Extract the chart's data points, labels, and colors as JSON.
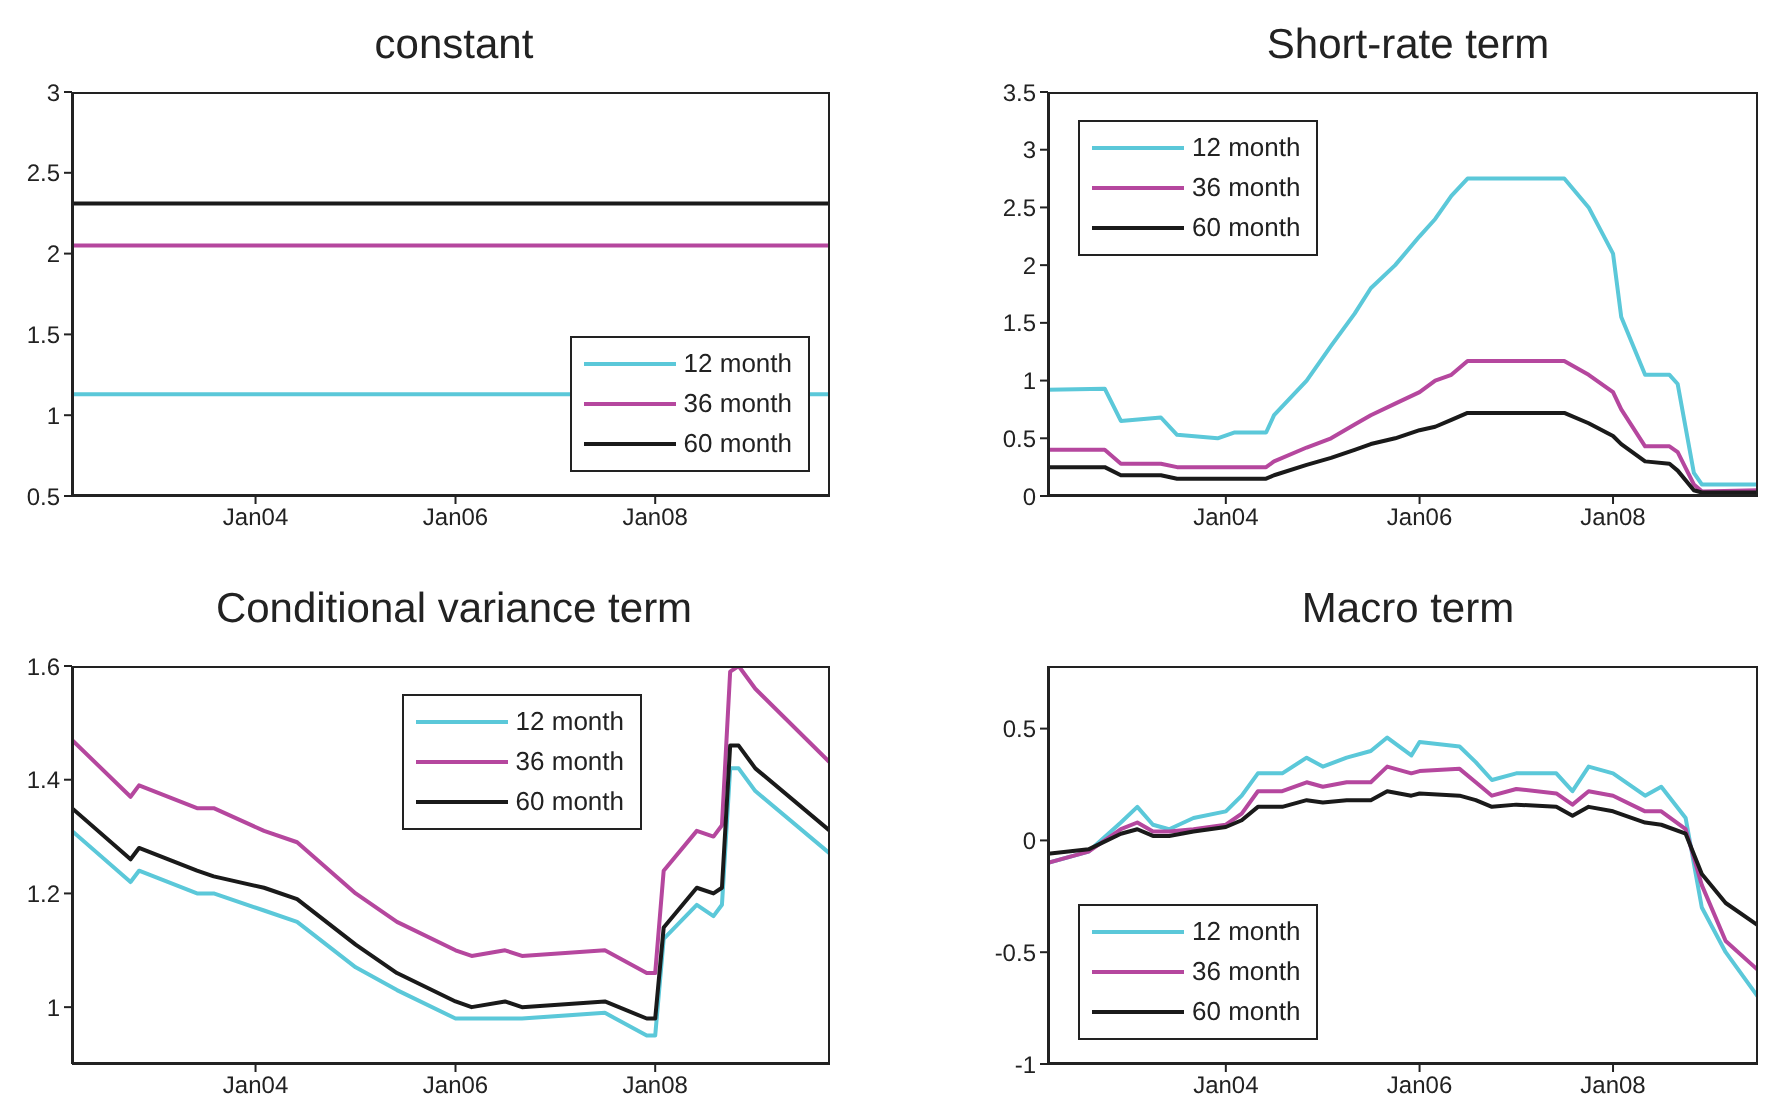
{
  "chart_data": [
    {
      "type": "line",
      "title": "constant",
      "legend": "bottom right",
      "x": [
        "2002-03",
        "2009-10"
      ],
      "xlim": [
        "2002-03",
        "2009-10"
      ],
      "xticks": [
        {
          "value": "2004-01",
          "label": "Jan04"
        },
        {
          "value": "2006-01",
          "label": "Jan06"
        },
        {
          "value": "2008-01",
          "label": "Jan08"
        }
      ],
      "ylim": [
        0.5,
        3
      ],
      "yticks": [
        0.5,
        1,
        1.5,
        2,
        2.5,
        3
      ],
      "series": [
        {
          "name": "12 month",
          "color": "#5bc8d9",
          "values": [
            1.13,
            1.13
          ]
        },
        {
          "name": "36 month",
          "color": "#b5479e",
          "values": [
            2.05,
            2.05
          ]
        },
        {
          "name": "60 month",
          "color": "#1a1a1a",
          "values": [
            2.31,
            2.31
          ]
        }
      ]
    },
    {
      "type": "line",
      "title": "Short-rate term",
      "legend": "top left",
      "x": [
        "2002-03",
        "2002-10",
        "2002-12",
        "2003-05",
        "2003-07",
        "2003-12",
        "2004-02",
        "2004-06",
        "2004-07",
        "2004-11",
        "2005-02",
        "2005-05",
        "2005-07",
        "2005-10",
        "2006-01",
        "2006-03",
        "2006-05",
        "2006-07",
        "2007-07",
        "2007-10",
        "2008-01",
        "2008-02",
        "2008-05",
        "2008-08",
        "2008-09",
        "2008-11",
        "2008-12",
        "2009-07"
      ],
      "xlim": [
        "2002-03",
        "2009-07"
      ],
      "xticks": [
        {
          "value": "2004-01",
          "label": "Jan04"
        },
        {
          "value": "2006-01",
          "label": "Jan06"
        },
        {
          "value": "2008-01",
          "label": "Jan08"
        }
      ],
      "ylim": [
        0,
        3.5
      ],
      "yticks": [
        0,
        0.5,
        1,
        1.5,
        2,
        2.5,
        3,
        3.5
      ],
      "series": [
        {
          "name": "12 month",
          "color": "#5bc8d9",
          "values": [
            0.92,
            0.93,
            0.65,
            0.68,
            0.53,
            0.5,
            0.55,
            0.55,
            0.7,
            1.0,
            1.3,
            1.58,
            1.8,
            2.0,
            2.25,
            2.4,
            2.6,
            2.75,
            2.75,
            2.5,
            2.1,
            1.55,
            1.05,
            1.05,
            0.97,
            0.2,
            0.1,
            0.1
          ]
        },
        {
          "name": "36 month",
          "color": "#b5479e",
          "values": [
            0.4,
            0.4,
            0.28,
            0.28,
            0.25,
            0.25,
            0.25,
            0.25,
            0.3,
            0.42,
            0.5,
            0.62,
            0.7,
            0.8,
            0.9,
            1.0,
            1.05,
            1.17,
            1.17,
            1.05,
            0.9,
            0.75,
            0.43,
            0.43,
            0.38,
            0.1,
            0.04,
            0.05
          ]
        },
        {
          "name": "60 month",
          "color": "#1a1a1a",
          "values": [
            0.25,
            0.25,
            0.18,
            0.18,
            0.15,
            0.15,
            0.15,
            0.15,
            0.18,
            0.27,
            0.33,
            0.4,
            0.45,
            0.5,
            0.57,
            0.6,
            0.66,
            0.72,
            0.72,
            0.63,
            0.52,
            0.45,
            0.3,
            0.28,
            0.22,
            0.05,
            0.03,
            0.03
          ]
        }
      ]
    },
    {
      "type": "line",
      "title": "Conditional variance term",
      "legend": "top right",
      "x": [
        "2002-03",
        "2002-10",
        "2002-11",
        "2003-06",
        "2003-08",
        "2004-02",
        "2004-06",
        "2005-01",
        "2005-06",
        "2006-01",
        "2006-03",
        "2006-07",
        "2006-09",
        "2007-07",
        "2007-12",
        "2008-01",
        "2008-02",
        "2008-06",
        "2008-08",
        "2008-09",
        "2008-10",
        "2008-11",
        "2009-01",
        "2009-10"
      ],
      "xlim": [
        "2002-03",
        "2009-10"
      ],
      "xticks": [
        {
          "value": "2004-01",
          "label": "Jan04"
        },
        {
          "value": "2006-01",
          "label": "Jan06"
        },
        {
          "value": "2008-01",
          "label": "Jan08"
        }
      ],
      "ylim": [
        0.9,
        1.6
      ],
      "yticks": [
        1,
        1.2,
        1.4,
        1.6
      ],
      "series": [
        {
          "name": "12 month",
          "color": "#5bc8d9",
          "values": [
            1.31,
            1.22,
            1.24,
            1.2,
            1.2,
            1.17,
            1.15,
            1.07,
            1.03,
            0.98,
            0.98,
            0.98,
            0.98,
            0.99,
            0.95,
            0.95,
            1.12,
            1.18,
            1.16,
            1.18,
            1.42,
            1.42,
            1.38,
            1.27
          ]
        },
        {
          "name": "36 month",
          "color": "#b5479e",
          "values": [
            1.47,
            1.37,
            1.39,
            1.35,
            1.35,
            1.31,
            1.29,
            1.2,
            1.15,
            1.1,
            1.09,
            1.1,
            1.09,
            1.1,
            1.06,
            1.06,
            1.24,
            1.31,
            1.3,
            1.32,
            1.59,
            1.6,
            1.56,
            1.43
          ]
        },
        {
          "name": "60 month",
          "color": "#1a1a1a",
          "values": [
            1.35,
            1.26,
            1.28,
            1.24,
            1.23,
            1.21,
            1.19,
            1.11,
            1.06,
            1.01,
            1.0,
            1.01,
            1.0,
            1.01,
            0.98,
            0.98,
            1.14,
            1.21,
            1.2,
            1.21,
            1.46,
            1.46,
            1.42,
            1.31
          ]
        }
      ]
    },
    {
      "type": "line",
      "title": "Macro term",
      "legend": "bottom left",
      "x": [
        "2002-03",
        "2002-08",
        "2002-12",
        "2003-02",
        "2003-04",
        "2003-06",
        "2003-09",
        "2004-01",
        "2004-03",
        "2004-05",
        "2004-08",
        "2004-11",
        "2005-01",
        "2005-04",
        "2005-07",
        "2005-09",
        "2005-12",
        "2006-01",
        "2006-06",
        "2006-08",
        "2006-10",
        "2007-01",
        "2007-06",
        "2007-08",
        "2007-10",
        "2008-01",
        "2008-05",
        "2008-07",
        "2008-10",
        "2008-12",
        "2009-03",
        "2009-07"
      ],
      "xlim": [
        "2002-03",
        "2009-07"
      ],
      "xticks": [
        {
          "value": "2004-01",
          "label": "Jan04"
        },
        {
          "value": "2006-01",
          "label": "Jan06"
        },
        {
          "value": "2008-01",
          "label": "Jan08"
        }
      ],
      "ylim": [
        -1,
        0.78
      ],
      "yticks": [
        -1,
        -0.5,
        0,
        0.5
      ],
      "series": [
        {
          "name": "12 month",
          "color": "#5bc8d9",
          "values": [
            -0.1,
            -0.05,
            0.08,
            0.15,
            0.07,
            0.05,
            0.1,
            0.13,
            0.2,
            0.3,
            0.3,
            0.37,
            0.33,
            0.37,
            0.4,
            0.46,
            0.38,
            0.44,
            0.42,
            0.35,
            0.27,
            0.3,
            0.3,
            0.22,
            0.33,
            0.3,
            0.2,
            0.24,
            0.1,
            -0.3,
            -0.5,
            -0.7
          ]
        },
        {
          "name": "36 month",
          "color": "#b5479e",
          "values": [
            -0.1,
            -0.05,
            0.05,
            0.08,
            0.04,
            0.04,
            0.05,
            0.07,
            0.12,
            0.22,
            0.22,
            0.26,
            0.24,
            0.26,
            0.26,
            0.33,
            0.3,
            0.31,
            0.32,
            0.26,
            0.2,
            0.23,
            0.21,
            0.16,
            0.22,
            0.2,
            0.13,
            0.13,
            0.05,
            -0.2,
            -0.45,
            -0.58
          ]
        },
        {
          "name": "60 month",
          "color": "#1a1a1a",
          "values": [
            -0.06,
            -0.04,
            0.03,
            0.05,
            0.02,
            0.02,
            0.04,
            0.06,
            0.09,
            0.15,
            0.15,
            0.18,
            0.17,
            0.18,
            0.18,
            0.22,
            0.2,
            0.21,
            0.2,
            0.18,
            0.15,
            0.16,
            0.15,
            0.11,
            0.15,
            0.13,
            0.08,
            0.07,
            0.03,
            -0.15,
            -0.28,
            -0.38
          ]
        }
      ]
    }
  ]
}
